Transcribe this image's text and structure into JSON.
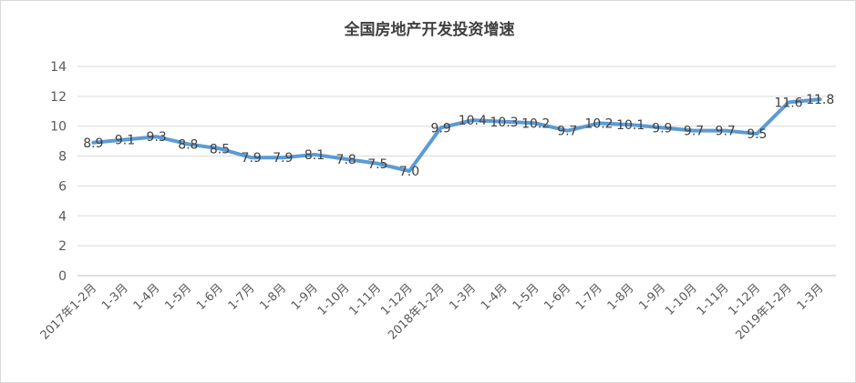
{
  "chart_data": {
    "type": "line",
    "title": "全国房地产开发投资增速",
    "xlabel": "",
    "ylabel": "",
    "ylim": [
      0,
      14
    ],
    "yticks": [
      "0",
      "2",
      "4",
      "6",
      "8",
      "10",
      "12",
      "14"
    ],
    "grid": true,
    "legend": "none",
    "line_color": "#5b9bd5",
    "categories": [
      "2017年1-2月",
      "1-3月",
      "1-4月",
      "1-5月",
      "1-6月",
      "1-7月",
      "1-8月",
      "1-9月",
      "1-10月",
      "1-11月",
      "1-12月",
      "2018年1-2月",
      "1-3月",
      "1-4月",
      "1-5月",
      "1-6月",
      "1-7月",
      "1-8月",
      "1-9月",
      "1-10月",
      "1-11月",
      "1-12月",
      "2019年1-2月",
      "1-3月"
    ],
    "values": [
      8.9,
      9.1,
      9.3,
      8.8,
      8.5,
      7.9,
      7.9,
      8.1,
      7.8,
      7.5,
      7.0,
      9.9,
      10.4,
      10.3,
      10.2,
      9.7,
      10.2,
      10.1,
      9.9,
      9.7,
      9.7,
      9.5,
      11.6,
      11.8
    ],
    "data_labels": [
      "8.9",
      "9.1",
      "9.3",
      "8.8",
      "8.5",
      "7.9",
      "7.9",
      "8.1",
      "7.8",
      "7.5",
      "7.0",
      "9.9",
      "10.4",
      "10.3",
      "10.2",
      "9.7",
      "10.2",
      "10.1",
      "9.9",
      "9.7",
      "9.7",
      "9.5",
      "11.6",
      "11.8"
    ]
  }
}
